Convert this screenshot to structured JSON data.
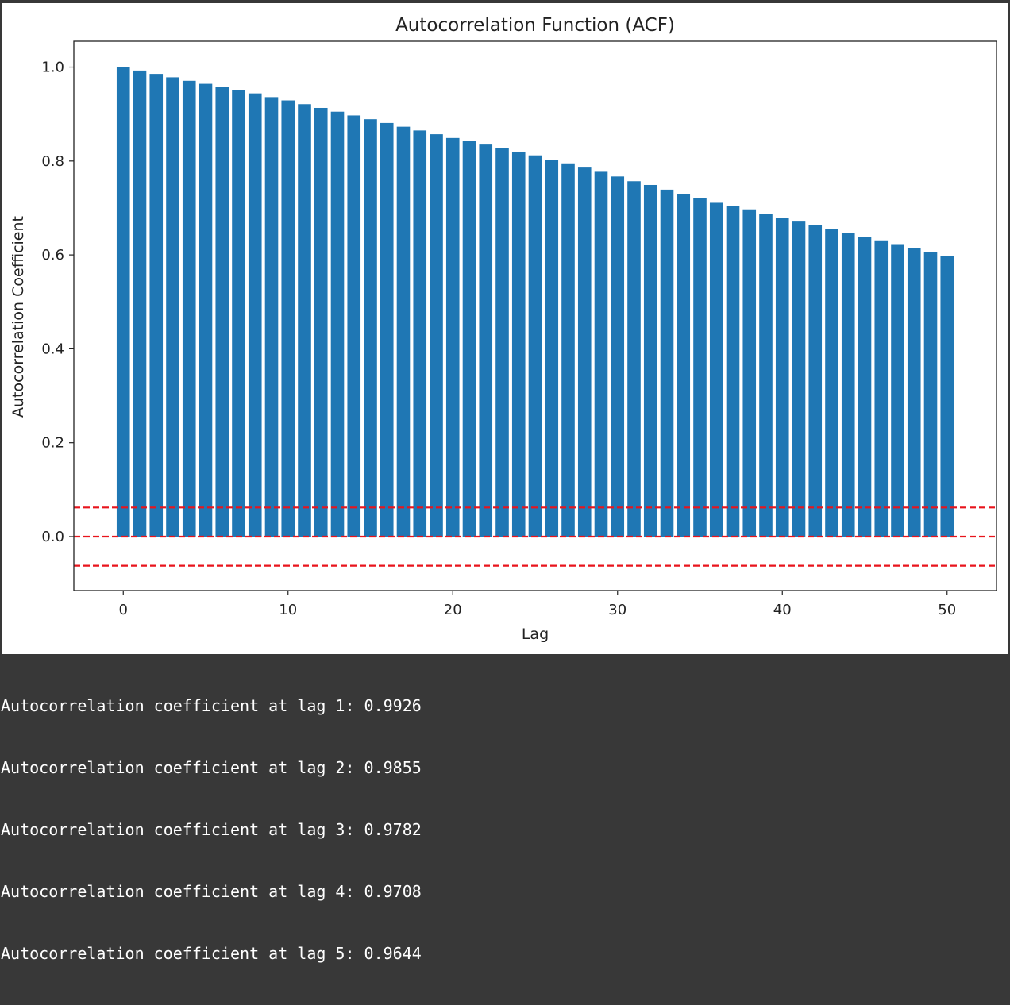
{
  "chart_data": {
    "type": "bar",
    "title": "Autocorrelation Function (ACF)",
    "xlabel": "Lag",
    "ylabel": "Autocorrelation Coefficient",
    "xlim": [
      -3,
      53
    ],
    "ylim": [
      -0.115,
      1.055
    ],
    "xticks": [
      0,
      10,
      20,
      30,
      40,
      50
    ],
    "yticks": [
      0.0,
      0.2,
      0.4,
      0.6,
      0.8,
      1.0
    ],
    "xtick_labels": [
      "0",
      "10",
      "20",
      "30",
      "40",
      "50"
    ],
    "ytick_labels": [
      "0.0",
      "0.2",
      "0.4",
      "0.6",
      "0.8",
      "1.0"
    ],
    "x": [
      0,
      1,
      2,
      3,
      4,
      5,
      6,
      7,
      8,
      9,
      10,
      11,
      12,
      13,
      14,
      15,
      16,
      17,
      18,
      19,
      20,
      21,
      22,
      23,
      24,
      25,
      26,
      27,
      28,
      29,
      30,
      31,
      32,
      33,
      34,
      35,
      36,
      37,
      38,
      39,
      40,
      41,
      42,
      43,
      44,
      45,
      46,
      47,
      48,
      49,
      50
    ],
    "values": [
      1.0,
      0.9926,
      0.9855,
      0.9782,
      0.9708,
      0.9644,
      0.958,
      0.951,
      0.944,
      0.936,
      0.929,
      0.921,
      0.913,
      0.905,
      0.897,
      0.889,
      0.881,
      0.873,
      0.865,
      0.857,
      0.849,
      0.842,
      0.835,
      0.828,
      0.82,
      0.812,
      0.803,
      0.795,
      0.786,
      0.777,
      0.767,
      0.757,
      0.749,
      0.739,
      0.729,
      0.721,
      0.711,
      0.704,
      0.697,
      0.687,
      0.679,
      0.671,
      0.664,
      0.655,
      0.646,
      0.638,
      0.631,
      0.623,
      0.615,
      0.606,
      0.598
    ],
    "bar_color": "#1f77b4",
    "confidence_lines": {
      "values": [
        0.062,
        0.0,
        -0.062
      ],
      "color": "#e8141c",
      "style": "dashed"
    },
    "grid": false,
    "legend": "none"
  },
  "console": {
    "lines": [
      "Autocorrelation coefficient at lag 1: 0.9926",
      "Autocorrelation coefficient at lag 2: 0.9855",
      "Autocorrelation coefficient at lag 3: 0.9782",
      "Autocorrelation coefficient at lag 4: 0.9708",
      "Autocorrelation coefficient at lag 5: 0.9644"
    ]
  }
}
